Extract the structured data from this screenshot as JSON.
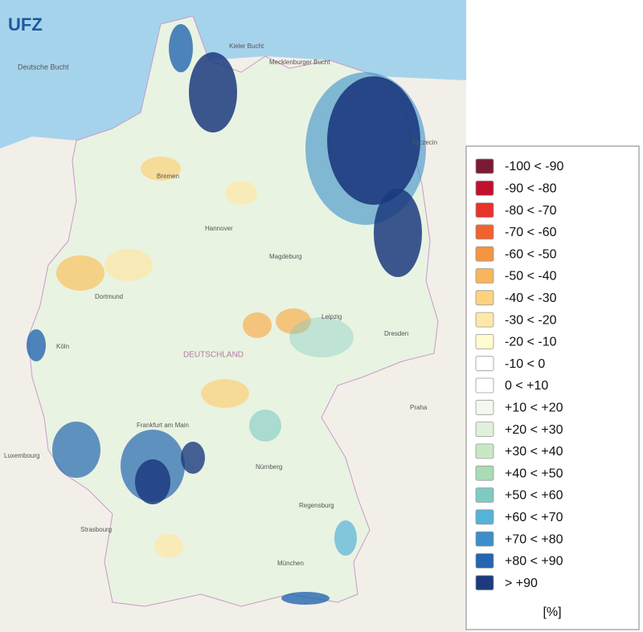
{
  "logo": "UFZ",
  "map_labels": [
    "Deutsche Bucht",
    "Kieler Bucht",
    "Mecklenburger Bucht",
    "Szczecin",
    "DEUTSCHLAND",
    "Hannover",
    "Bremen",
    "Leipzig",
    "Dresden",
    "Köln",
    "Dortmund",
    "Frankfurt am Main",
    "Nürnberg",
    "München",
    "Regensburg",
    "Praha",
    "Strasbourg",
    "Luxembourg",
    "Magdeburg"
  ],
  "legend": {
    "items": [
      {
        "label": "-100 < -90",
        "color": "#7b1a33"
      },
      {
        "label": "-90 < -80",
        "color": "#c0112e"
      },
      {
        "label": "-80 < -70",
        "color": "#e8332a"
      },
      {
        "label": "-70 < -60",
        "color": "#f2622f"
      },
      {
        "label": "-60 < -50",
        "color": "#f59443"
      },
      {
        "label": "-50 < -40",
        "color": "#f8b55a"
      },
      {
        "label": "-40 < -30",
        "color": "#fbd37f"
      },
      {
        "label": "-30 < -20",
        "color": "#fde8a8"
      },
      {
        "label": "-20 < -10",
        "color": "#fffcd0"
      },
      {
        "label": "-10 < 0",
        "color": "#ffffff"
      },
      {
        "label": "0 < +10",
        "color": "#ffffff"
      },
      {
        "label": "+10 < +20",
        "color": "#f3f8ee"
      },
      {
        "label": "+20 < +30",
        "color": "#dff0dc"
      },
      {
        "label": "+30 < +40",
        "color": "#c9e7c5"
      },
      {
        "label": "+40 < +50",
        "color": "#a9dbb4"
      },
      {
        "label": "+50 < +60",
        "color": "#7fcbc4"
      },
      {
        "label": "+60 < +70",
        "color": "#56b2d8"
      },
      {
        "label": "+70 < +80",
        "color": "#3a8fca"
      },
      {
        "label": "+80 < +90",
        "color": "#2466b0"
      },
      {
        "label": "> +90",
        "color": "#1c3a7e"
      }
    ],
    "unit": "[%]"
  }
}
